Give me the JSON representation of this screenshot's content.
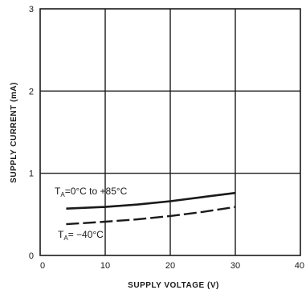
{
  "chart_data": {
    "type": "line",
    "xlabel": "SUPPLY VOLTAGE (V)",
    "ylabel": "SUPPLY CURRENT (mA)",
    "xlim": [
      0,
      40
    ],
    "ylim": [
      0,
      3
    ],
    "x_ticks": [
      "0",
      "10",
      "20",
      "30",
      "40"
    ],
    "y_ticks": [
      "0",
      "1",
      "2",
      "3"
    ],
    "grid": true,
    "series": [
      {
        "name_parts": [
          "T",
          "A",
          "=0°C to +85°C"
        ],
        "style": "solid",
        "x": [
          4,
          10,
          15,
          20,
          25,
          30
        ],
        "y": [
          0.57,
          0.59,
          0.62,
          0.66,
          0.71,
          0.76
        ]
      },
      {
        "name_parts": [
          "T",
          "A",
          "= −40°C"
        ],
        "style": "dashed",
        "x": [
          4,
          10,
          15,
          20,
          25,
          30
        ],
        "y": [
          0.38,
          0.41,
          0.44,
          0.48,
          0.53,
          0.59
        ]
      }
    ]
  }
}
